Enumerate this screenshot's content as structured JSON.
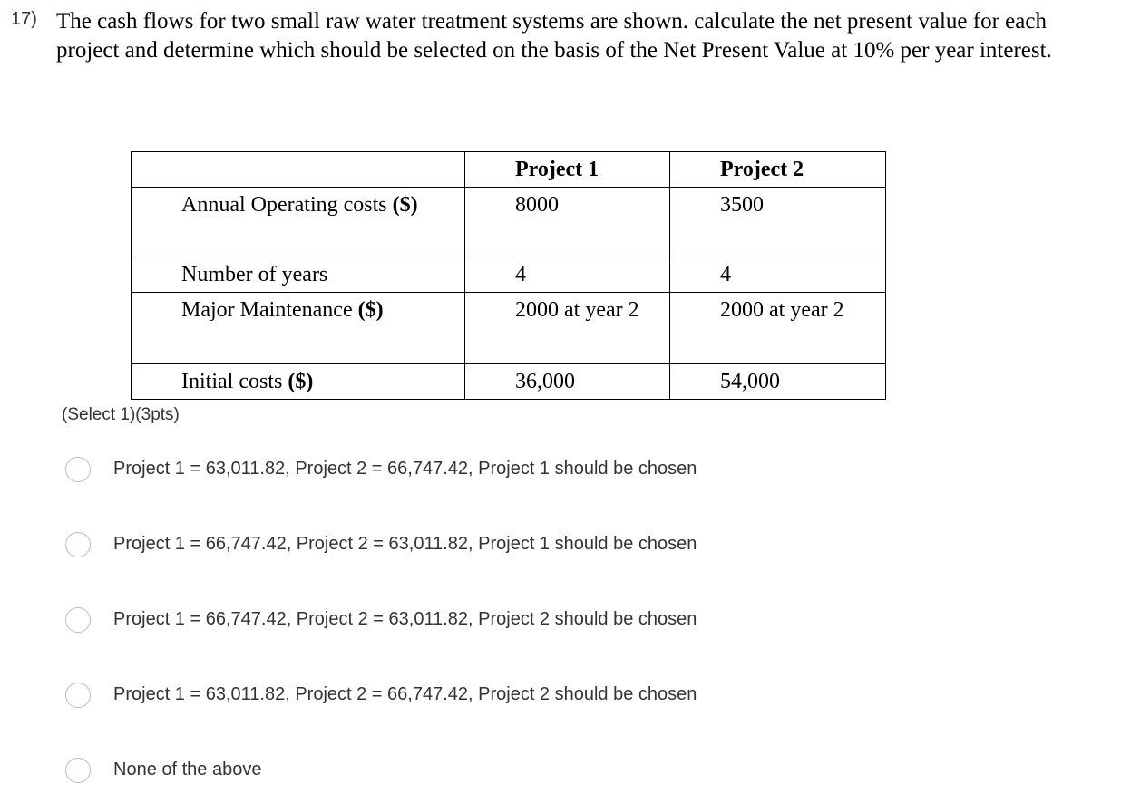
{
  "question": {
    "number": "17)",
    "text": "The cash flows for two small raw water treatment systems are shown. calculate the net present value for each project and determine which should be selected on the basis of the Net Present Value at 10% per year interest."
  },
  "table": {
    "header": [
      "Project 1",
      "Project 2"
    ],
    "rows": [
      {
        "label": "Annual Operating costs",
        "unit": "($)",
        "values": [
          "8000",
          "3500"
        ]
      },
      {
        "label": "Number of years",
        "values": [
          "4",
          "4"
        ]
      },
      {
        "label": "Major Maintenance",
        "unit": "($)",
        "values": [
          "2000 at year 2",
          "2000 at year 2"
        ]
      },
      {
        "label": "Initial costs",
        "unit": "($)",
        "values": [
          "36,000",
          "54,000"
        ]
      }
    ]
  },
  "note": "(Select 1)(3pts)",
  "options": [
    "Project 1 = 63,011.82, Project 2 = 66,747.42, Project 1 should be chosen",
    "Project 1 = 66,747.42, Project 2 = 63,011.82, Project 1 should be chosen",
    "Project 1 = 66,747.42, Project 2 = 63,011.82, Project 2 should be chosen",
    "Project 1 = 63,011.82, Project 2 = 66,747.42, Project 2 should be chosen",
    "None of the above"
  ]
}
